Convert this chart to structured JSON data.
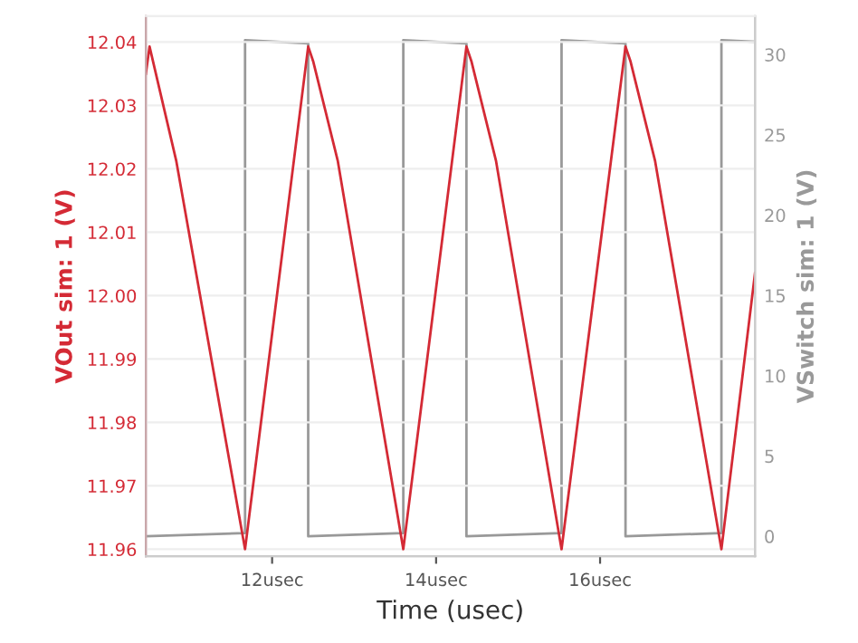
{
  "chart_data": {
    "type": "line",
    "xlabel": "Time (usec)",
    "ylabel": "VOut sim: 1 (V)",
    "y2label": "VSwitch sim: 1 (V)",
    "xlim": [
      10.46,
      17.89
    ],
    "xticks": [
      {
        "value": 12,
        "label": "12usec"
      },
      {
        "value": 14,
        "label": "14usec"
      },
      {
        "value": 16,
        "label": "16usec"
      }
    ],
    "ylim": [
      11.9589,
      12.0441
    ],
    "yticks": [
      {
        "value": 11.96,
        "label": "11.96"
      },
      {
        "value": 11.97,
        "label": "11.97"
      },
      {
        "value": 11.98,
        "label": "11.98"
      },
      {
        "value": 11.99,
        "label": "11.99"
      },
      {
        "value": 12.0,
        "label": "12.00"
      },
      {
        "value": 12.01,
        "label": "12.01"
      },
      {
        "value": 12.02,
        "label": "12.02"
      },
      {
        "value": 12.03,
        "label": "12.03"
      },
      {
        "value": 12.04,
        "label": "12.04"
      }
    ],
    "y2lim": [
      -1.24,
      32.4
    ],
    "y2ticks": [
      0,
      5,
      10,
      15,
      20,
      25,
      30
    ],
    "grid": "y",
    "legend": false,
    "marker": "none",
    "line_style": "solid",
    "series": [
      {
        "color": "#999999",
        "axis": "y2",
        "x": [
          10.46,
          11.67,
          11.67,
          12.44,
          12.44,
          13.6,
          13.6,
          14.37,
          14.37,
          15.53,
          15.53,
          16.31,
          16.31,
          17.48,
          17.48,
          17.89
        ],
        "values": [
          0,
          0.2,
          30.9,
          30.7,
          0,
          0.2,
          30.9,
          30.7,
          0,
          0.2,
          30.9,
          30.7,
          0,
          0.2,
          30.9,
          30.8
        ]
      },
      {
        "color": "#d42a35",
        "x": [
          10.46,
          10.505,
          10.83,
          11.67,
          12.44,
          12.5,
          12.8,
          13.6,
          14.37,
          14.43,
          14.73,
          15.53,
          16.31,
          16.37,
          16.67,
          17.48,
          17.89
        ],
        "values": [
          12.035,
          12.0393,
          12.0213,
          11.96,
          12.0393,
          12.037,
          12.0213,
          11.96,
          12.0393,
          12.037,
          12.0213,
          11.96,
          12.0393,
          12.037,
          12.0213,
          11.96,
          12.0036
        ]
      }
    ]
  }
}
